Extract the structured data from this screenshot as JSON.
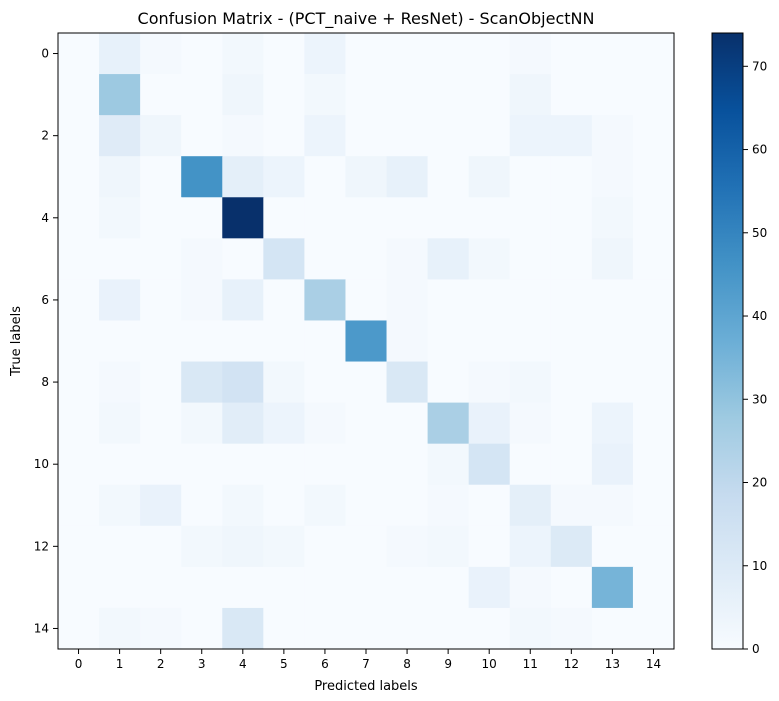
{
  "chart_data": {
    "type": "heatmap",
    "title": "Confusion Matrix - (PCT_naive + ResNet) - ScanObjectNN",
    "xlabel": "Predicted labels",
    "ylabel": "True labels",
    "x_ticks": [
      "0",
      "1",
      "2",
      "3",
      "4",
      "5",
      "6",
      "7",
      "8",
      "9",
      "10",
      "11",
      "12",
      "13",
      "14"
    ],
    "y_ticks": [
      "0",
      "2",
      "4",
      "6",
      "8",
      "10",
      "12",
      "14"
    ],
    "colorbar_ticks": [
      "0",
      "10",
      "20",
      "30",
      "40",
      "50",
      "60",
      "70"
    ],
    "colormap": "Blues",
    "vmin": 0,
    "vmax": 74,
    "matrix": [
      [
        0,
        6,
        1,
        0,
        2,
        0,
        4,
        0,
        0,
        0,
        0,
        1,
        0,
        0,
        0
      ],
      [
        0,
        28,
        0,
        0,
        3,
        0,
        2,
        0,
        0,
        0,
        0,
        3,
        0,
        0,
        0
      ],
      [
        0,
        9,
        3,
        0,
        1,
        0,
        4,
        0,
        0,
        0,
        0,
        4,
        4,
        1,
        0
      ],
      [
        0,
        3,
        0,
        46,
        7,
        4,
        0,
        3,
        6,
        0,
        3,
        0,
        0,
        1,
        0
      ],
      [
        0,
        2,
        0,
        0,
        74,
        0,
        0,
        0,
        0,
        0,
        0,
        0,
        0,
        2,
        0
      ],
      [
        0,
        0,
        0,
        1,
        0,
        13,
        0,
        0,
        1,
        6,
        2,
        0,
        0,
        3,
        0
      ],
      [
        0,
        5,
        0,
        1,
        6,
        0,
        25,
        0,
        1,
        0,
        0,
        0,
        0,
        0,
        0
      ],
      [
        0,
        0,
        0,
        0,
        0,
        0,
        0,
        44,
        1,
        0,
        0,
        0,
        0,
        0,
        0
      ],
      [
        0,
        1,
        0,
        11,
        14,
        2,
        0,
        0,
        11,
        0,
        1,
        2,
        0,
        0,
        0
      ],
      [
        0,
        2,
        0,
        2,
        8,
        4,
        1,
        0,
        0,
        25,
        5,
        1,
        0,
        4,
        0
      ],
      [
        0,
        0,
        0,
        0,
        0,
        0,
        0,
        0,
        0,
        2,
        13,
        0,
        0,
        5,
        0
      ],
      [
        0,
        2,
        5,
        0,
        2,
        0,
        2,
        0,
        0,
        1,
        0,
        7,
        1,
        1,
        0
      ],
      [
        0,
        0,
        0,
        2,
        3,
        2,
        0,
        0,
        1,
        2,
        0,
        4,
        10,
        0,
        0
      ],
      [
        0,
        0,
        0,
        0,
        0,
        0,
        0,
        0,
        0,
        0,
        5,
        1,
        0,
        35,
        0
      ],
      [
        0,
        2,
        1,
        0,
        11,
        0,
        0,
        0,
        0,
        0,
        0,
        2,
        1,
        0,
        0
      ]
    ]
  }
}
